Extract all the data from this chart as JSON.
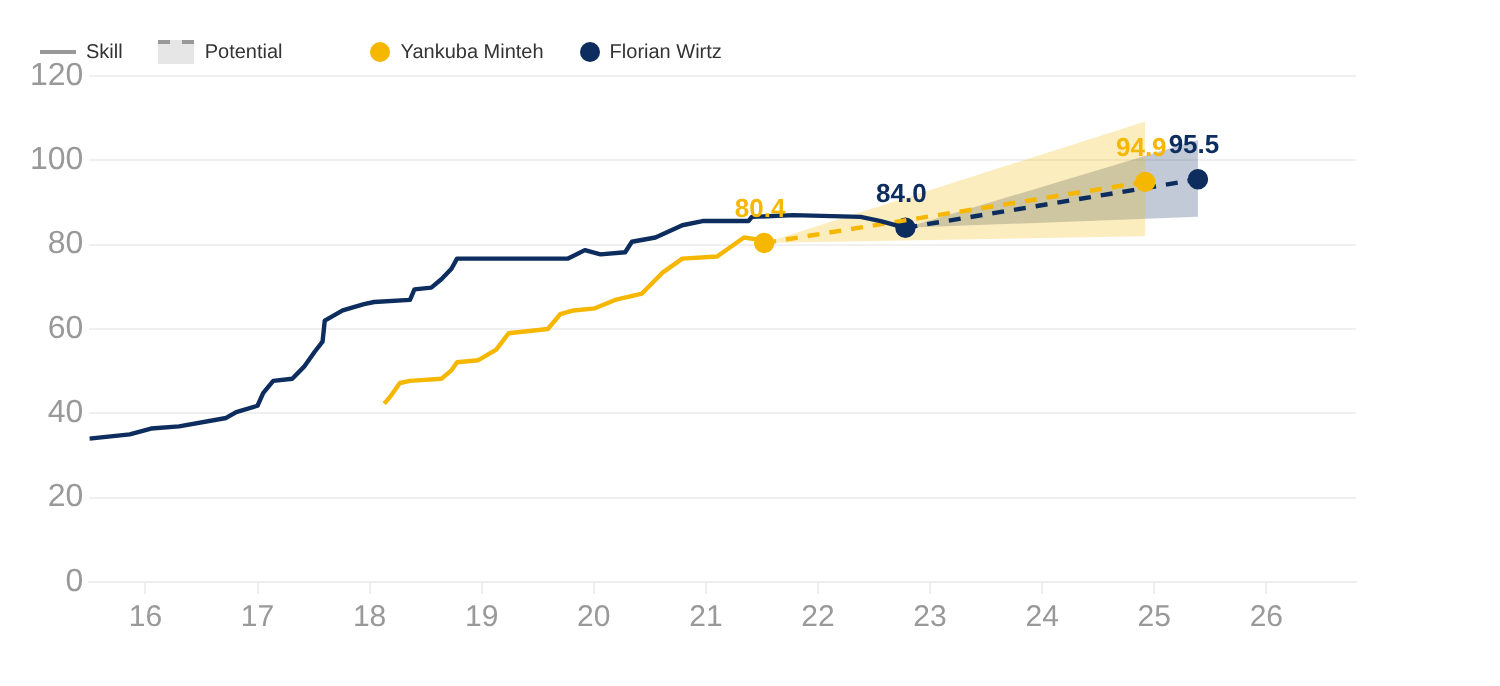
{
  "chart_data": {
    "type": "line",
    "xlim": [
      15.5,
      26.8
    ],
    "xticks": [
      16,
      17,
      18,
      19,
      20,
      21,
      22,
      23,
      24,
      25,
      26
    ],
    "ylim": [
      0,
      120
    ],
    "yticks": [
      0,
      20,
      40,
      60,
      80,
      100,
      120
    ],
    "grid": "y",
    "legend": "top left",
    "annotations": [
      "Skill",
      "Potential"
    ],
    "series": [
      {
        "name": "Yankuba Minteh",
        "color": "#f5b700",
        "line_style": "solid",
        "marker": "none",
        "x": [
          18.13,
          18.18,
          18.27,
          18.36,
          18.64,
          18.73,
          18.78,
          18.97,
          19.13,
          19.24,
          19.59,
          19.7,
          19.82,
          20.01,
          20.19,
          20.43,
          20.61,
          20.79,
          21.1,
          21.34,
          21.47,
          21.52
        ],
        "values": [
          42.3,
          43.8,
          47.2,
          47.7,
          48.2,
          50.2,
          52.1,
          52.6,
          55.1,
          59,
          60,
          63.5,
          64.4,
          64.9,
          66.9,
          68.4,
          73.3,
          76.7,
          77.2,
          81.7,
          81.2,
          80.4
        ]
      },
      {
        "name": "Florian Wirtz",
        "color": "#0d2d5e",
        "line_style": "solid",
        "marker": "none",
        "x": [
          15.5,
          15.86,
          16.05,
          16.3,
          16.72,
          16.81,
          17.0,
          17.05,
          17.14,
          17.31,
          17.42,
          17.51,
          17.58,
          17.6,
          17.76,
          17.95,
          18.04,
          18.36,
          18.4,
          18.55,
          18.64,
          18.73,
          18.78,
          19.77,
          19.92,
          20.06,
          20.28,
          20.34,
          20.55,
          20.79,
          20.97,
          21.38,
          21.41,
          21.78,
          22.38,
          22.56,
          22.78
        ],
        "values": [
          34,
          35,
          36.4,
          36.9,
          38.9,
          40.3,
          41.8,
          44.8,
          47.7,
          48.2,
          51.2,
          54.6,
          57,
          62,
          64.4,
          65.9,
          66.4,
          66.9,
          69.4,
          69.8,
          71.8,
          74.3,
          76.7,
          76.7,
          78.7,
          77.7,
          78.2,
          80.7,
          81.7,
          84.6,
          85.6,
          85.6,
          86.6,
          87,
          86.6,
          85.6,
          84.0
        ]
      },
      {
        "color": "#f5b700",
        "line_style": "dashed",
        "marker": "circle",
        "x": [
          21.52,
          24.92
        ],
        "values": [
          80.4,
          94.9
        ],
        "lower": [
          80.4,
          82
        ],
        "upper": [
          80.4,
          109.2
        ],
        "value_labels": [
          "80.4",
          "94.9"
        ]
      },
      {
        "color": "#0d2d5e",
        "line_style": "dashed",
        "marker": "circle",
        "x": [
          22.78,
          25.39
        ],
        "values": [
          84.0,
          95.5
        ],
        "lower": [
          84.0,
          86.6
        ],
        "upper": [
          84.0,
          104.8
        ],
        "value_labels": [
          "84.0",
          "95.5"
        ]
      }
    ]
  }
}
